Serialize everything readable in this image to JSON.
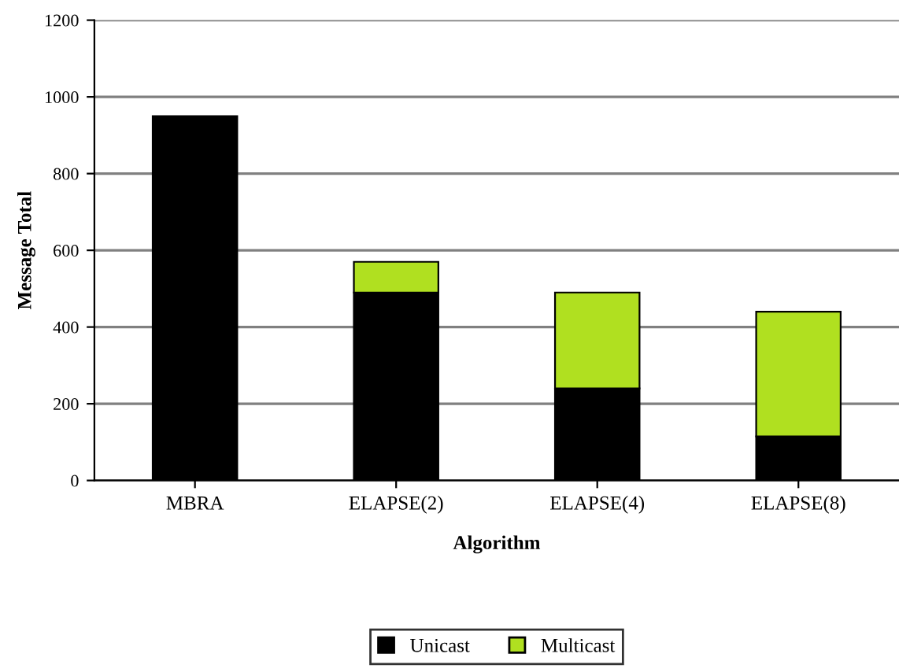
{
  "chart_data": {
    "type": "bar",
    "stacked": true,
    "xlabel": "Algorithm",
    "ylabel": "Message Total",
    "categories": [
      "MBRA",
      "ELAPSE(2)",
      "ELAPSE(4)",
      "ELAPSE(8)"
    ],
    "series": [
      {
        "name": "Unicast",
        "color": "#000000",
        "values": [
          950,
          490,
          240,
          115
        ]
      },
      {
        "name": "Multicast",
        "color": "#b0e020",
        "values": [
          null,
          80,
          250,
          325
        ]
      }
    ],
    "ylim": [
      0,
      1200
    ],
    "yticks": [
      0,
      200,
      400,
      600,
      800,
      1000,
      1200
    ],
    "grid": "y",
    "legend": "bottom"
  }
}
